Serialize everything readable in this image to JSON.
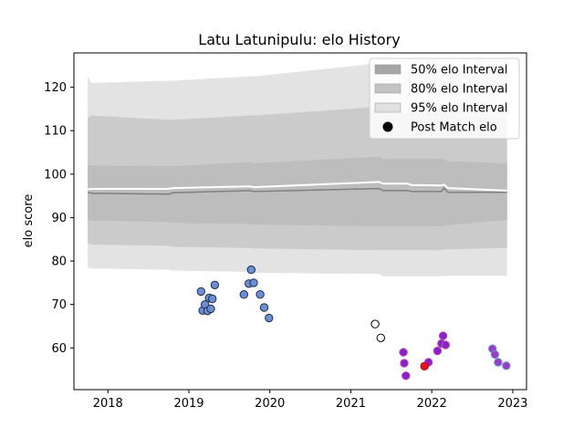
{
  "chart_data": {
    "type": "scatter",
    "title": "Latu Latunipulu: elo History",
    "xlabel": "",
    "ylabel": "elo score",
    "xlim": [
      2017.58,
      2023.17
    ],
    "ylim": [
      50.4,
      127.9
    ],
    "x_ticks": [
      2018,
      2019,
      2020,
      2021,
      2022,
      2023
    ],
    "x_tick_labels": [
      "2018",
      "2019",
      "2020",
      "2021",
      "2022",
      "2023"
    ],
    "y_ticks": [
      60,
      70,
      80,
      90,
      100,
      110,
      120
    ],
    "y_tick_labels": [
      "60",
      "70",
      "80",
      "90",
      "100",
      "110",
      "120"
    ],
    "grid": false,
    "legend_position": "top-right",
    "legend": [
      {
        "label": "50% elo Interval",
        "kind": "patch",
        "color": "#a6a6a6"
      },
      {
        "label": "80% elo Interval",
        "kind": "patch",
        "color": "#c4c4c4"
      },
      {
        "label": "95% elo Interval",
        "kind": "patch",
        "color": "#e1e1e1"
      },
      {
        "label": "Post Match elo",
        "kind": "marker",
        "color": "#000000"
      }
    ],
    "band_colors": {
      "b95": "#e3e3e3",
      "b80": "#cbcbcb",
      "b50": "#bdbdbd",
      "median": "#808080",
      "mean": "#ffffff"
    },
    "bands": {
      "x": [
        2017.75,
        2017.8,
        2018.75,
        2018.8,
        2019.75,
        2019.8,
        2021.35,
        2021.4,
        2021.7,
        2021.75,
        2022.12,
        2022.15,
        2022.2,
        2022.93
      ],
      "b95_hi": [
        122.5,
        121.0,
        121.5,
        121.5,
        122.5,
        122.5,
        125.5,
        124.0,
        124.0,
        124.0,
        124.0,
        124.0,
        123.5,
        123.5
      ],
      "b95_lo": [
        78.5,
        78.3,
        78.0,
        77.8,
        77.5,
        77.3,
        77.0,
        76.5,
        76.5,
        76.5,
        76.5,
        76.6,
        76.6,
        76.6
      ],
      "b80_hi": [
        113.0,
        113.5,
        112.5,
        112.5,
        113.5,
        113.5,
        115.5,
        114.0,
        114.0,
        114.0,
        114.0,
        114.0,
        113.5,
        113.0
      ],
      "b80_lo": [
        84.0,
        83.8,
        83.5,
        83.3,
        83.0,
        82.9,
        82.5,
        82.5,
        82.5,
        82.5,
        82.5,
        82.7,
        82.7,
        83.0
      ],
      "b50_hi": [
        102.0,
        102.0,
        101.8,
        101.8,
        102.8,
        102.5,
        104.0,
        103.5,
        103.5,
        103.5,
        103.5,
        103.5,
        103.0,
        102.5
      ],
      "b50_lo": [
        89.5,
        89.3,
        89.0,
        88.8,
        88.5,
        88.4,
        88.0,
        88.0,
        88.0,
        88.0,
        88.0,
        88.2,
        88.2,
        89.5
      ],
      "median": [
        95.8,
        95.6,
        95.4,
        95.7,
        96.2,
        96.0,
        96.7,
        96.2,
        96.2,
        96.0,
        96.0,
        96.8,
        95.8,
        95.8
      ],
      "mean": [
        96.5,
        96.6,
        96.6,
        96.8,
        97.2,
        97.0,
        98.2,
        97.8,
        97.8,
        97.5,
        97.4,
        97.6,
        96.8,
        96.2
      ]
    },
    "series": [
      {
        "marker_color": "#6a8fd6",
        "edge_color": "#1f2a44",
        "points": [
          {
            "x": 2019.15,
            "y": 73.0
          },
          {
            "x": 2019.17,
            "y": 68.6
          },
          {
            "x": 2019.2,
            "y": 70.0
          },
          {
            "x": 2019.23,
            "y": 68.5
          },
          {
            "x": 2019.25,
            "y": 71.5
          },
          {
            "x": 2019.27,
            "y": 69.0
          },
          {
            "x": 2019.29,
            "y": 71.3
          },
          {
            "x": 2019.32,
            "y": 74.5
          },
          {
            "x": 2019.68,
            "y": 72.3
          },
          {
            "x": 2019.74,
            "y": 74.8
          },
          {
            "x": 2019.77,
            "y": 78.0
          },
          {
            "x": 2019.8,
            "y": 75.0
          },
          {
            "x": 2019.88,
            "y": 72.3
          },
          {
            "x": 2019.93,
            "y": 69.3
          },
          {
            "x": 2019.99,
            "y": 66.9
          }
        ]
      },
      {
        "marker_color": "#ffffff",
        "edge_color": "#000000",
        "points": [
          {
            "x": 2021.3,
            "y": 65.5
          },
          {
            "x": 2021.37,
            "y": 62.3
          }
        ]
      },
      {
        "marker_color": "#8a1fd2",
        "edge_color": "#b8509a",
        "points": [
          {
            "x": 2021.65,
            "y": 59.0
          },
          {
            "x": 2021.66,
            "y": 56.5
          },
          {
            "x": 2021.68,
            "y": 53.6
          },
          {
            "x": 2021.96,
            "y": 56.7
          },
          {
            "x": 2022.07,
            "y": 59.3
          },
          {
            "x": 2022.12,
            "y": 61.0
          },
          {
            "x": 2022.14,
            "y": 62.8
          },
          {
            "x": 2022.17,
            "y": 60.7
          }
        ]
      },
      {
        "marker_color": "#e8121e",
        "edge_color": "#b01018",
        "points": [
          {
            "x": 2021.91,
            "y": 55.8
          }
        ]
      },
      {
        "marker_color": "#9b3cc8",
        "edge_color": "#6f8fd0",
        "points": [
          {
            "x": 2022.75,
            "y": 59.8
          },
          {
            "x": 2022.78,
            "y": 58.5
          },
          {
            "x": 2022.82,
            "y": 56.7
          },
          {
            "x": 2022.92,
            "y": 55.9
          }
        ]
      }
    ]
  }
}
